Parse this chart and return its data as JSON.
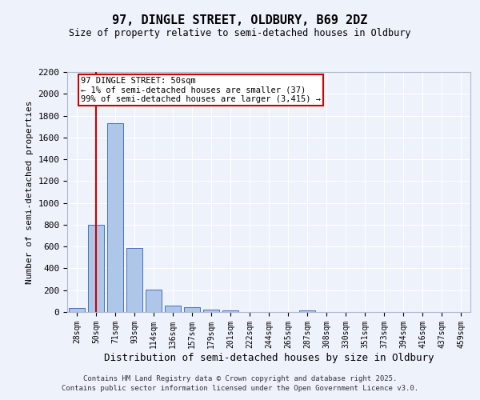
{
  "title_line1": "97, DINGLE STREET, OLDBURY, B69 2DZ",
  "title_line2": "Size of property relative to semi-detached houses in Oldbury",
  "xlabel": "Distribution of semi-detached houses by size in Oldbury",
  "ylabel": "Number of semi-detached properties",
  "categories": [
    "28sqm",
    "50sqm",
    "71sqm",
    "93sqm",
    "114sqm",
    "136sqm",
    "157sqm",
    "179sqm",
    "201sqm",
    "222sqm",
    "244sqm",
    "265sqm",
    "287sqm",
    "308sqm",
    "330sqm",
    "351sqm",
    "373sqm",
    "394sqm",
    "416sqm",
    "437sqm",
    "459sqm"
  ],
  "values": [
    37,
    800,
    1730,
    590,
    205,
    60,
    42,
    20,
    17,
    0,
    0,
    0,
    17,
    0,
    0,
    0,
    0,
    0,
    0,
    0,
    0
  ],
  "bar_color": "#aec6e8",
  "bar_edge_color": "#4472c4",
  "red_line_index": 1,
  "annotation_text": "97 DINGLE STREET: 50sqm\n← 1% of semi-detached houses are smaller (37)\n99% of semi-detached houses are larger (3,415) →",
  "annotation_box_color": "#ffffff",
  "annotation_box_edge": "#cc0000",
  "annotation_text_color": "#000000",
  "red_line_color": "#cc0000",
  "ylim": [
    0,
    2200
  ],
  "yticks": [
    0,
    200,
    400,
    600,
    800,
    1000,
    1200,
    1400,
    1600,
    1800,
    2000,
    2200
  ],
  "bg_color": "#eef2fb",
  "grid_color": "#ffffff",
  "footer_line1": "Contains HM Land Registry data © Crown copyright and database right 2025.",
  "footer_line2": "Contains public sector information licensed under the Open Government Licence v3.0."
}
